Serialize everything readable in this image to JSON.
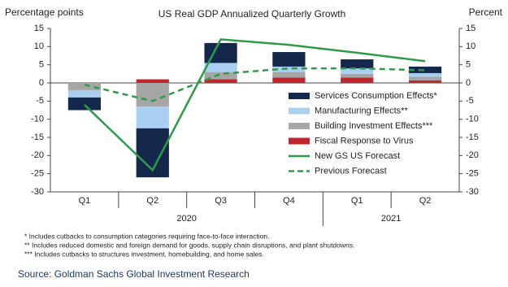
{
  "chart_data": {
    "type": "bar",
    "title": "US Real GDP Annualized Quarterly Growth",
    "ylabel": "Percentage points",
    "y2label": "Percent",
    "categories": [
      "Q1",
      "Q2",
      "Q3",
      "Q4",
      "Q1",
      "Q2"
    ],
    "groups": [
      "2020",
      "2020",
      "2020",
      "2020",
      "2021",
      "2021"
    ],
    "ylim": [
      -30,
      15
    ],
    "yticks": [
      -30,
      -25,
      -20,
      -15,
      -10,
      -5,
      0,
      5,
      10,
      15
    ],
    "y2lim": [
      -30,
      15
    ],
    "y2ticks": [
      -30,
      -25,
      -20,
      -15,
      -10,
      -5,
      0,
      5,
      10,
      15
    ],
    "legend": "lower right",
    "series": [
      {
        "name": "Services Consumption Effects*",
        "color": "#14284b",
        "type": "bar",
        "values": [
          -3.5,
          -13.5,
          5.5,
          4,
          2.5,
          1.8
        ]
      },
      {
        "name": "Manufacturing Effects**",
        "color": "#a9d0f0",
        "type": "bar",
        "values": [
          -2,
          -6,
          2.5,
          1.5,
          1.5,
          1
        ]
      },
      {
        "name": "Building Investment Effects***",
        "color": "#a6a6a6",
        "type": "bar",
        "values": [
          -2,
          -6.5,
          2,
          1.5,
          1,
          1
        ]
      },
      {
        "name": "Fiscal Response to Virus",
        "color": "#c0272d",
        "type": "bar",
        "values": [
          0,
          1,
          1,
          1.5,
          1.5,
          0.7
        ]
      },
      {
        "name": "New GS US Forecast",
        "color": "#2e9b48",
        "type": "line",
        "axis": "y2",
        "values": [
          -6,
          -24,
          12,
          10.5,
          8.3,
          6
        ]
      },
      {
        "name": "Previous Forecast",
        "color": "#2e9b48",
        "type": "line",
        "dashed": true,
        "axis": "y2",
        "values": [
          -0.5,
          -5,
          2.5,
          4,
          4,
          3.5
        ]
      }
    ],
    "footnotes": [
      "* Includes cutbacks to consumption categories requiring face-to-face interaction.",
      "** Includes reduced domestic and foreign demand for goods, supply chain disruptions, and plant shutdowns.",
      "*** Includes cutbacks to structures investment, homebuilding, and home sales."
    ],
    "source": "Source: Goldman Sachs Global Investment Research"
  }
}
